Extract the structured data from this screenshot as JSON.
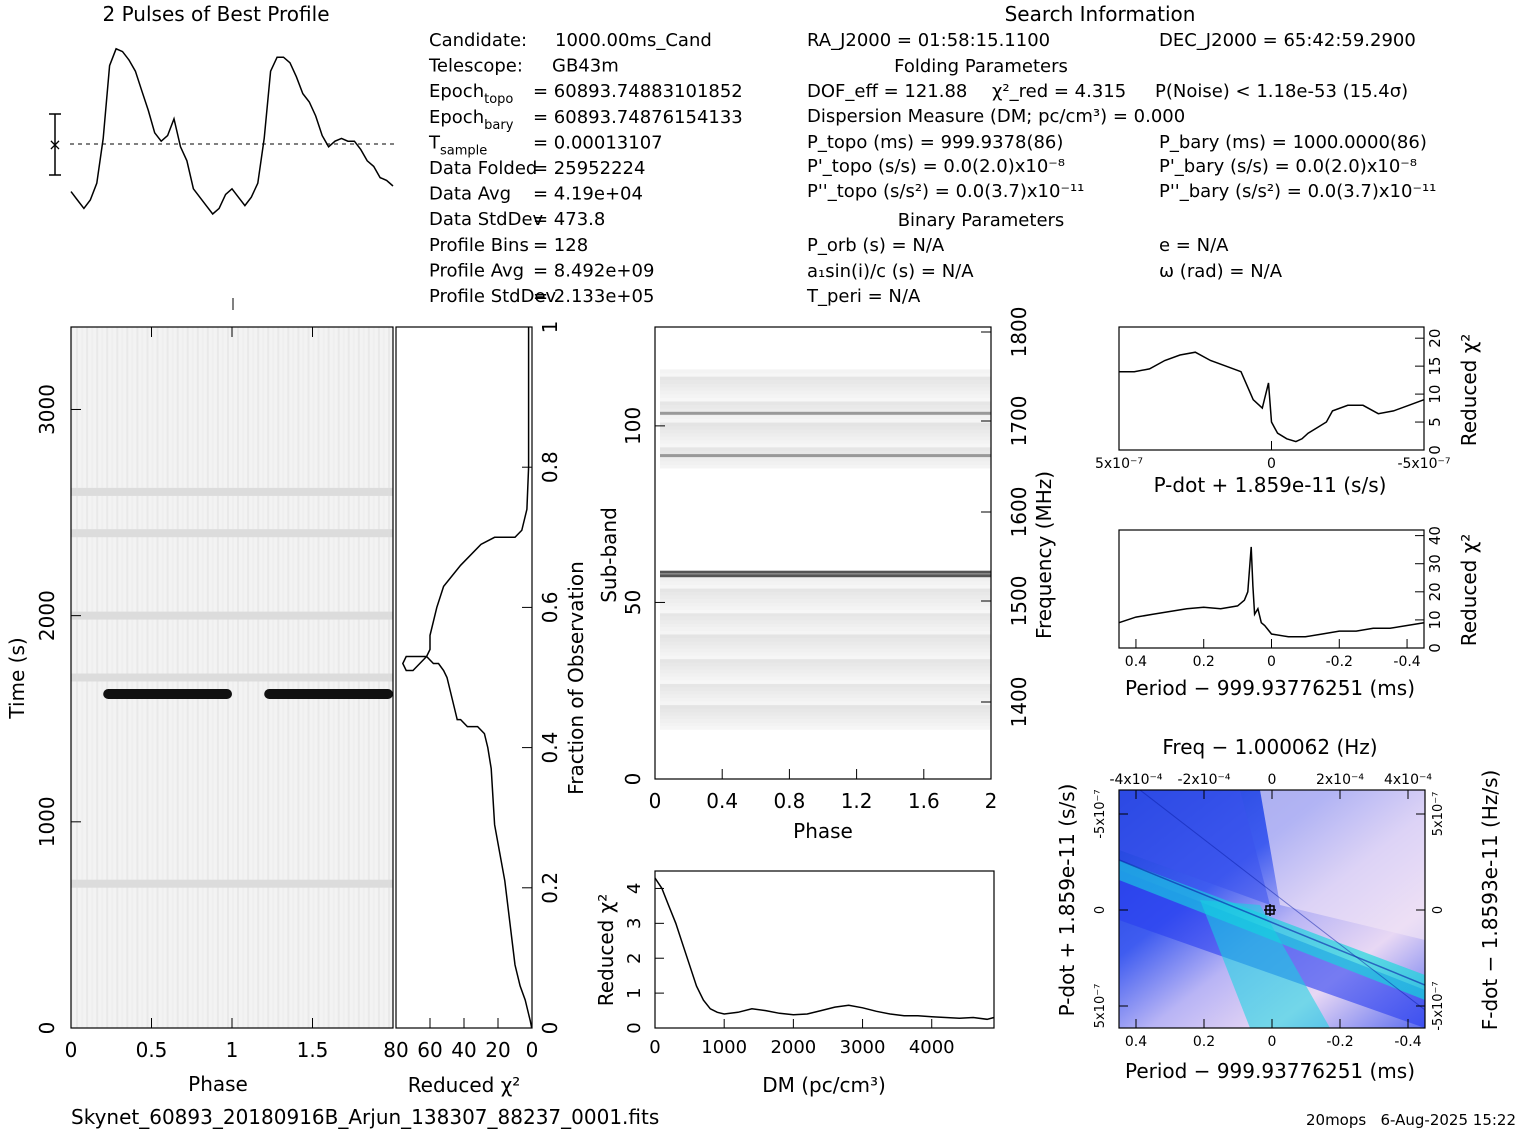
{
  "titles": {
    "profile": "2 Pulses of Best Profile",
    "search": "Search Information",
    "folding": "Folding Parameters",
    "binary": "Binary Parameters"
  },
  "info_left": [
    {
      "label": "Candidate:",
      "value": "1000.00ms_Cand"
    },
    {
      "label": "Telescope:",
      "value": "GB43m"
    },
    {
      "label": "Epoch",
      "sub": "topo",
      "value": "= 60893.74883101852"
    },
    {
      "label": "Epoch",
      "sub": "bary",
      "value": "= 60893.74876154133"
    },
    {
      "label": "T",
      "sub": "sample",
      "value": "= 0.00013107"
    },
    {
      "label": "Data Folded",
      "value": "= 25952224"
    },
    {
      "label": "Data Avg",
      "value": "= 4.19e+04"
    },
    {
      "label": "Data StdDev",
      "value": "= 473.8"
    },
    {
      "label": "Profile Bins",
      "value": "= 128"
    },
    {
      "label": "Profile Avg",
      "value": "= 8.492e+09"
    },
    {
      "label": "Profile StdDev",
      "value": "= 2.133e+05"
    }
  ],
  "info_search": {
    "ra": "RA_J2000 = 01:58:15.1100",
    "dec": "DEC_J2000 = 65:42:59.2900",
    "dof": "DOF_eff = 121.88",
    "chi2": "χ²_red = 4.315",
    "pnoise": "P(Noise) < 1.18e-53 (15.4σ)",
    "dm": "Dispersion Measure (DM; pc/cm³) = 0.000",
    "ptopo": "P_topo (ms) = 999.9378(86)",
    "pbary": "P_bary (ms) = 1000.0000(86)",
    "pdtopo": "P'_topo (s/s) = 0.0(2.0)x10⁻⁸",
    "pdbary": "P'_bary (s/s) = 0.0(2.0)x10⁻⁸",
    "pddtopo": "P''_topo (s/s²) = 0.0(3.7)x10⁻¹¹",
    "pddbary": "P''_bary (s/s²) = 0.0(3.7)x10⁻¹¹",
    "porb": "P_orb (s) = N/A",
    "e": "e = N/A",
    "a1": "a₁sin(i)/c (s) = N/A",
    "omega": "ω (rad) = N/A",
    "tperi": "T_peri = N/A"
  },
  "footer": {
    "filename": "Skynet_60893_20180916B_Arjun_138307_88237_0001.fits",
    "stamp": "20mops   6-Aug-2025 15:22"
  },
  "chart_data": [
    {
      "id": "profile",
      "type": "line",
      "title": "2 Pulses of Best Profile",
      "x": [
        0.0,
        0.04,
        0.08,
        0.12,
        0.16,
        0.2,
        0.24,
        0.28,
        0.32,
        0.36,
        0.4,
        0.44,
        0.48,
        0.52,
        0.56,
        0.6,
        0.64,
        0.68,
        0.72,
        0.76,
        0.8,
        0.84,
        0.88,
        0.92,
        0.96,
        1.0,
        1.04,
        1.08,
        1.12,
        1.16,
        1.2,
        1.24,
        1.28,
        1.32,
        1.36,
        1.4,
        1.44,
        1.48,
        1.52,
        1.56,
        1.6,
        1.64,
        1.68,
        1.72,
        1.76,
        1.8,
        1.84,
        1.88,
        1.92,
        1.96,
        2.0
      ],
      "values": [
        -1.7,
        -2.0,
        -2.3,
        -2.0,
        -1.4,
        0.2,
        2.8,
        3.4,
        3.3,
        3.0,
        2.6,
        1.9,
        1.2,
        0.4,
        0.1,
        0.3,
        0.9,
        -0.1,
        -0.6,
        -1.6,
        -1.9,
        -2.2,
        -2.5,
        -2.3,
        -1.8,
        -1.6,
        -1.9,
        -2.2,
        -1.9,
        -1.4,
        0.2,
        2.6,
        3.1,
        3.1,
        2.9,
        2.4,
        1.8,
        1.5,
        1.0,
        0.3,
        -0.1,
        0.1,
        0.2,
        0.1,
        0.1,
        -0.2,
        -0.6,
        -0.8,
        -1.2,
        -1.3,
        -1.5
      ]
    },
    {
      "id": "time-phase",
      "type": "heatmap",
      "xlabel": "Phase",
      "ylabel": "Time (s)",
      "xlim": [
        0,
        2
      ],
      "ylim": [
        0,
        3400
      ],
      "xticks": [
        "0",
        "0.5",
        "1",
        "1.5"
      ],
      "yticks": [
        "0",
        "1000",
        "2000",
        "3000"
      ],
      "pulse_time": 1620,
      "pulse_phase_ranges": [
        [
          0.2,
          1.0
        ],
        [
          1.2,
          2.0
        ]
      ],
      "band_times": [
        700,
        1700,
        2000,
        2400,
        2600
      ]
    },
    {
      "id": "chi2-vs-time",
      "type": "line",
      "xlabel": "Reduced χ²",
      "ylabel": "Fraction of Observation",
      "xlim": [
        80,
        0
      ],
      "ylim": [
        0,
        1
      ],
      "xticks": [
        "80",
        "60",
        "40",
        "20",
        "0"
      ],
      "yticks": [
        "0",
        "0.2",
        "0.4",
        "0.6",
        "0.8",
        "1"
      ],
      "x": [
        0.2,
        1,
        2,
        4,
        7,
        10,
        12,
        14,
        16,
        19,
        22,
        23,
        24,
        26,
        28,
        32,
        38,
        42,
        44,
        45,
        46,
        47,
        48,
        49,
        50,
        52,
        55,
        58,
        62,
        66,
        70,
        74,
        76,
        74,
        70,
        66,
        62,
        60,
        60,
        60,
        58,
        56,
        52,
        42,
        30,
        22,
        20,
        10,
        6,
        3,
        2,
        2,
        2,
        2,
        2
      ],
      "y": [
        0.0,
        0.01,
        0.02,
        0.04,
        0.06,
        0.09,
        0.13,
        0.17,
        0.21,
        0.25,
        0.29,
        0.33,
        0.37,
        0.4,
        0.42,
        0.43,
        0.43,
        0.44,
        0.44,
        0.45,
        0.46,
        0.47,
        0.48,
        0.49,
        0.5,
        0.51,
        0.52,
        0.52,
        0.53,
        0.53,
        0.53,
        0.53,
        0.52,
        0.51,
        0.51,
        0.52,
        0.53,
        0.54,
        0.55,
        0.56,
        0.58,
        0.6,
        0.63,
        0.66,
        0.69,
        0.7,
        0.7,
        0.7,
        0.71,
        0.74,
        0.8,
        0.86,
        0.92,
        0.97,
        1.0
      ]
    },
    {
      "id": "subband-phase",
      "type": "heatmap",
      "xlabel": "Phase",
      "ylabel": "Sub-band",
      "y2label": "Frequency (MHz)",
      "xlim": [
        0,
        2
      ],
      "ylim": [
        0,
        128
      ],
      "xticks": [
        "0",
        "0.4",
        "0.8",
        "1.2",
        "1.6",
        "2"
      ],
      "yticks": [
        "0",
        "50",
        "100"
      ],
      "y2ticks": [
        "1400",
        "1500",
        "1600",
        "1700",
        "1800"
      ],
      "active_bands": [
        [
          14,
          58
        ],
        [
          88,
          116
        ]
      ],
      "bright_bands": [
        57,
        58,
        91,
        103
      ]
    },
    {
      "id": "dm-curve",
      "type": "line",
      "xlabel": "DM (pc/cm³)",
      "ylabel": "Reduced χ²",
      "xlim": [
        0,
        4900
      ],
      "ylim": [
        0,
        4.5
      ],
      "xticks": [
        "0",
        "1000",
        "2000",
        "3000",
        "4000"
      ],
      "yticks": [
        "0",
        "1",
        "2",
        "3",
        "4"
      ],
      "x": [
        0,
        100,
        200,
        300,
        400,
        500,
        600,
        700,
        800,
        900,
        1000,
        1200,
        1400,
        1600,
        1800,
        2000,
        2200,
        2400,
        2600,
        2800,
        3000,
        3200,
        3400,
        3600,
        3800,
        4000,
        4200,
        4400,
        4600,
        4800,
        4900
      ],
      "values": [
        4.3,
        4.0,
        3.5,
        3.0,
        2.4,
        1.8,
        1.2,
        0.8,
        0.55,
        0.45,
        0.4,
        0.45,
        0.55,
        0.5,
        0.42,
        0.38,
        0.4,
        0.5,
        0.6,
        0.65,
        0.58,
        0.48,
        0.4,
        0.35,
        0.35,
        0.32,
        0.3,
        0.28,
        0.3,
        0.25,
        0.3
      ]
    },
    {
      "id": "pdot-curve",
      "type": "line",
      "xlabel": "P-dot + 1.859e-11 (s/s)",
      "ylabel": "Reduced χ²",
      "xlim": [
        5e-07,
        -5e-07
      ],
      "ylim": [
        0,
        22
      ],
      "xticks": [
        "5x10⁻⁷",
        "0",
        "-5x10⁻⁷"
      ],
      "yticks": [
        "0",
        "5",
        "10",
        "15",
        "20"
      ],
      "x": [
        5e-07,
        4.5e-07,
        4e-07,
        3.5e-07,
        3e-07,
        2.5e-07,
        2e-07,
        1.5e-07,
        1e-07,
        6e-08,
        3e-08,
        1e-08,
        0.0,
        -1e-08,
        -2e-08,
        -5e-08,
        -8e-08,
        -1e-07,
        -1.2e-07,
        -1.5e-07,
        -1.8e-07,
        -2e-07,
        -2.5e-07,
        -3e-07,
        -3.5e-07,
        -4e-07,
        -4.5e-07,
        -5e-07
      ],
      "values": [
        14,
        14,
        14.5,
        16,
        17,
        17.5,
        16,
        15,
        14,
        9,
        7.5,
        12,
        5,
        4,
        3,
        2,
        1.5,
        2,
        3,
        4,
        5,
        7,
        8,
        8,
        6.5,
        7,
        8,
        9
      ]
    },
    {
      "id": "period-curve",
      "type": "line",
      "xlabel": "Period − 999.93776251 (ms)",
      "ylabel": "Reduced χ²",
      "xlim": [
        0.45,
        -0.45
      ],
      "ylim": [
        0,
        42
      ],
      "xticks": [
        "0.4",
        "0.2",
        "0",
        "-0.2",
        "-0.4"
      ],
      "yticks": [
        "0",
        "10",
        "20",
        "30",
        "40"
      ],
      "x": [
        0.45,
        0.4,
        0.35,
        0.3,
        0.25,
        0.2,
        0.15,
        0.1,
        0.08,
        0.07,
        0.06,
        0.055,
        0.05,
        0.04,
        0.03,
        0.02,
        0.0,
        -0.05,
        -0.1,
        -0.15,
        -0.2,
        -0.25,
        -0.3,
        -0.35,
        -0.4,
        -0.45
      ],
      "values": [
        9,
        11,
        12,
        13,
        14,
        14.5,
        14,
        15,
        17,
        20,
        36,
        22,
        12,
        14,
        9,
        8,
        5,
        4,
        4,
        5,
        6,
        6,
        7,
        7,
        8,
        9
      ]
    },
    {
      "id": "pp-dot-plane",
      "type": "heatmap",
      "title": "Freq − 1.000062 (Hz)",
      "xlabel": "Period − 999.93776251 (ms)",
      "ylabel": "P-dot + 1.859e-11 (s/s)",
      "y2label": "F-dot − 1.8593e-11 (Hz/s)",
      "xticks": [
        "0.4",
        "0.2",
        "0",
        "-0.2",
        "-0.4"
      ],
      "x2ticks": [
        "-4x10⁻⁴",
        "-2x10⁻⁴",
        "0",
        "2x10⁻⁴",
        "4x10⁻⁴"
      ],
      "yticks": [
        "-5x10⁻⁷",
        "0",
        "5x10⁻⁷"
      ],
      "y2ticks": [
        "5x10⁻⁷",
        "0",
        "-5x10⁻⁷"
      ],
      "best_point": [
        0.0,
        0.0
      ]
    }
  ]
}
